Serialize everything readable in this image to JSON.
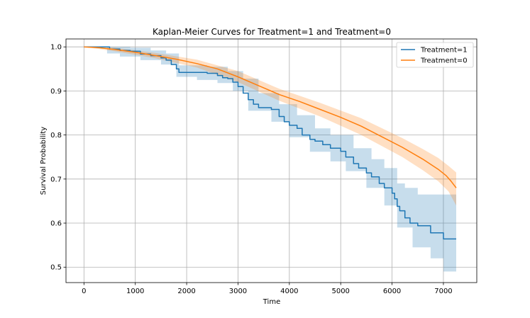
{
  "chart_data": {
    "type": "line",
    "title": "Kaplan-Meier Curves for Treatment=1 and Treatment=0",
    "xlabel": "Time",
    "ylabel": "Survival Probability",
    "xlim": [
      -350,
      7650
    ],
    "ylim": [
      0.465,
      1.018
    ],
    "x_ticks": [
      0,
      1000,
      2000,
      3000,
      4000,
      5000,
      6000,
      7000
    ],
    "y_ticks": [
      0.5,
      0.6,
      0.7,
      0.8,
      0.9,
      1.0
    ],
    "y_tick_labels": [
      "0.5",
      "0.6",
      "0.7",
      "0.8",
      "0.9",
      "1.0"
    ],
    "grid": true,
    "legend_position": "top-right",
    "series": [
      {
        "name": "Treatment=1",
        "color": "#1f77b4",
        "band_color": "#1f77b4",
        "step": true,
        "points": [
          [
            0,
            1.0
          ],
          [
            450,
            1.0
          ],
          [
            500,
            0.995
          ],
          [
            700,
            0.992
          ],
          [
            900,
            0.99
          ],
          [
            1100,
            0.984
          ],
          [
            1300,
            0.98
          ],
          [
            1500,
            0.975
          ],
          [
            1600,
            0.97
          ],
          [
            1700,
            0.96
          ],
          [
            1800,
            0.95
          ],
          [
            1850,
            0.942
          ],
          [
            2200,
            0.942
          ],
          [
            2400,
            0.94
          ],
          [
            2600,
            0.935
          ],
          [
            2700,
            0.93
          ],
          [
            2800,
            0.928
          ],
          [
            2900,
            0.92
          ],
          [
            3000,
            0.91
          ],
          [
            3100,
            0.895
          ],
          [
            3200,
            0.88
          ],
          [
            3300,
            0.87
          ],
          [
            3400,
            0.862
          ],
          [
            3650,
            0.858
          ],
          [
            3800,
            0.842
          ],
          [
            3900,
            0.83
          ],
          [
            4000,
            0.822
          ],
          [
            4150,
            0.815
          ],
          [
            4250,
            0.8
          ],
          [
            4400,
            0.79
          ],
          [
            4500,
            0.786
          ],
          [
            4650,
            0.778
          ],
          [
            4800,
            0.77
          ],
          [
            5000,
            0.763
          ],
          [
            5100,
            0.75
          ],
          [
            5250,
            0.735
          ],
          [
            5350,
            0.725
          ],
          [
            5500,
            0.714
          ],
          [
            5600,
            0.705
          ],
          [
            5750,
            0.69
          ],
          [
            5850,
            0.68
          ],
          [
            6000,
            0.668
          ],
          [
            6050,
            0.655
          ],
          [
            6100,
            0.638
          ],
          [
            6150,
            0.628
          ],
          [
            6250,
            0.612
          ],
          [
            6350,
            0.6
          ],
          [
            6500,
            0.594
          ],
          [
            6750,
            0.578
          ],
          [
            7000,
            0.564
          ],
          [
            7250,
            0.564
          ]
        ],
        "ci_lower": [
          [
            0,
            1.0
          ],
          [
            450,
            0.985
          ],
          [
            700,
            0.978
          ],
          [
            1100,
            0.97
          ],
          [
            1500,
            0.96
          ],
          [
            1800,
            0.932
          ],
          [
            2200,
            0.925
          ],
          [
            2600,
            0.918
          ],
          [
            2900,
            0.9
          ],
          [
            3200,
            0.855
          ],
          [
            3650,
            0.83
          ],
          [
            4000,
            0.795
          ],
          [
            4400,
            0.762
          ],
          [
            4800,
            0.74
          ],
          [
            5100,
            0.718
          ],
          [
            5500,
            0.68
          ],
          [
            5850,
            0.64
          ],
          [
            6100,
            0.59
          ],
          [
            6400,
            0.545
          ],
          [
            6750,
            0.52
          ],
          [
            7000,
            0.49
          ],
          [
            7250,
            0.49
          ]
        ],
        "ci_upper": [
          [
            0,
            1.0
          ],
          [
            450,
            1.0
          ],
          [
            900,
            0.998
          ],
          [
            1300,
            0.992
          ],
          [
            1600,
            0.985
          ],
          [
            1850,
            0.958
          ],
          [
            2400,
            0.955
          ],
          [
            2800,
            0.945
          ],
          [
            3100,
            0.928
          ],
          [
            3400,
            0.895
          ],
          [
            3800,
            0.87
          ],
          [
            4150,
            0.845
          ],
          [
            4500,
            0.815
          ],
          [
            4800,
            0.8
          ],
          [
            5250,
            0.77
          ],
          [
            5600,
            0.745
          ],
          [
            5850,
            0.725
          ],
          [
            6100,
            0.69
          ],
          [
            6250,
            0.68
          ],
          [
            6500,
            0.665
          ],
          [
            7250,
            0.665
          ]
        ]
      },
      {
        "name": "Treatment=0",
        "color": "#ff7f0e",
        "band_color": "#ff7f0e",
        "step": false,
        "points": [
          [
            0,
            1.0
          ],
          [
            300,
            0.998
          ],
          [
            600,
            0.994
          ],
          [
            1000,
            0.988
          ],
          [
            1400,
            0.98
          ],
          [
            1800,
            0.972
          ],
          [
            2200,
            0.962
          ],
          [
            2600,
            0.95
          ],
          [
            3000,
            0.932
          ],
          [
            3400,
            0.912
          ],
          [
            3800,
            0.892
          ],
          [
            4200,
            0.876
          ],
          [
            4600,
            0.858
          ],
          [
            5000,
            0.84
          ],
          [
            5400,
            0.82
          ],
          [
            5800,
            0.796
          ],
          [
            6200,
            0.772
          ],
          [
            6600,
            0.745
          ],
          [
            6900,
            0.722
          ],
          [
            7050,
            0.708
          ],
          [
            7150,
            0.695
          ],
          [
            7250,
            0.68
          ]
        ],
        "ci_lower": [
          [
            0,
            1.0
          ],
          [
            600,
            0.99
          ],
          [
            1400,
            0.974
          ],
          [
            2200,
            0.953
          ],
          [
            3000,
            0.92
          ],
          [
            3800,
            0.878
          ],
          [
            4600,
            0.842
          ],
          [
            5400,
            0.8
          ],
          [
            6200,
            0.75
          ],
          [
            6600,
            0.72
          ],
          [
            6900,
            0.695
          ],
          [
            7100,
            0.672
          ],
          [
            7250,
            0.64
          ]
        ],
        "ci_upper": [
          [
            0,
            1.0
          ],
          [
            600,
            0.998
          ],
          [
            1400,
            0.986
          ],
          [
            2200,
            0.971
          ],
          [
            3000,
            0.945
          ],
          [
            3800,
            0.905
          ],
          [
            4600,
            0.873
          ],
          [
            5400,
            0.838
          ],
          [
            6200,
            0.793
          ],
          [
            6600,
            0.768
          ],
          [
            6900,
            0.748
          ],
          [
            7100,
            0.73
          ],
          [
            7250,
            0.715
          ]
        ]
      }
    ]
  }
}
